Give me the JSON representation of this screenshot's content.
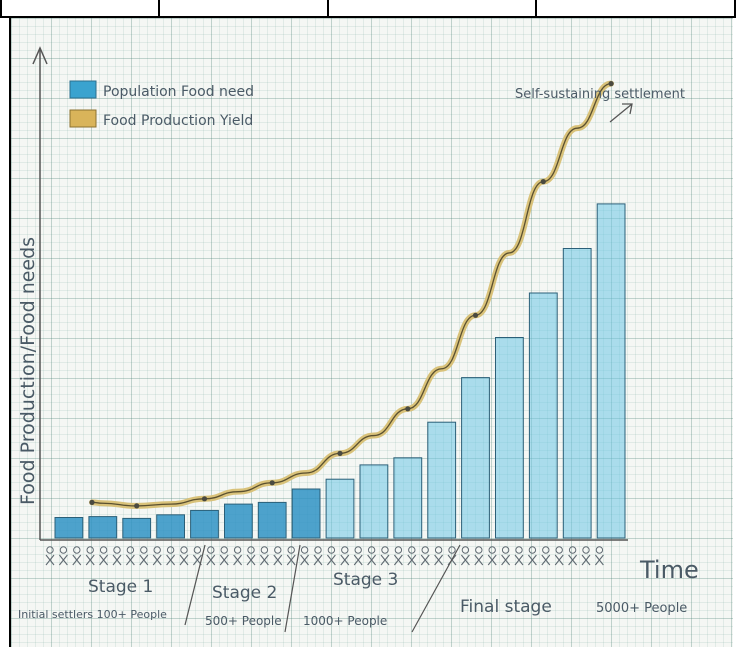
{
  "chart_data": {
    "type": "bar",
    "title": "",
    "xlabel": "Time",
    "ylabel": "Food Production/Food needs",
    "legend": {
      "placement": "top-left",
      "entries": [
        {
          "label": "Population Food need",
          "color": "#4fb3d6"
        },
        {
          "label": "Food Production Yield",
          "color": "#d9b45a"
        }
      ]
    },
    "series": [
      {
        "name": "Population Food need",
        "type": "bar",
        "color": "#4fb3d6",
        "values": [
          2.3,
          2.4,
          2.2,
          2.6,
          3.1,
          3.8,
          4.0,
          5.5,
          6.6,
          8.2,
          9.0,
          13.0,
          18.0,
          22.5,
          27.5,
          32.5,
          37.5
        ]
      },
      {
        "name": "Food Production Yield",
        "type": "line",
        "color": "#c9a64a",
        "values": [
          4.0,
          3.9,
          3.6,
          3.8,
          4.4,
          5.2,
          6.2,
          7.3,
          9.5,
          11.5,
          14.5,
          19.0,
          25.0,
          32.0,
          40.0,
          46.0,
          51.0
        ]
      }
    ],
    "ylim": [
      0,
      55
    ],
    "annotations": [
      {
        "text": "Self-sustaining settlement",
        "kind": "arrow-label"
      }
    ],
    "stages": [
      {
        "label": "Stage 1",
        "sub": "Initial settlers 100+ People"
      },
      {
        "label": "Stage 2",
        "sub": "500+ People"
      },
      {
        "label": "Stage 3",
        "sub": "1000+ People"
      },
      {
        "label": "Final stage",
        "sub": "5000+ People"
      }
    ],
    "grid": true
  }
}
